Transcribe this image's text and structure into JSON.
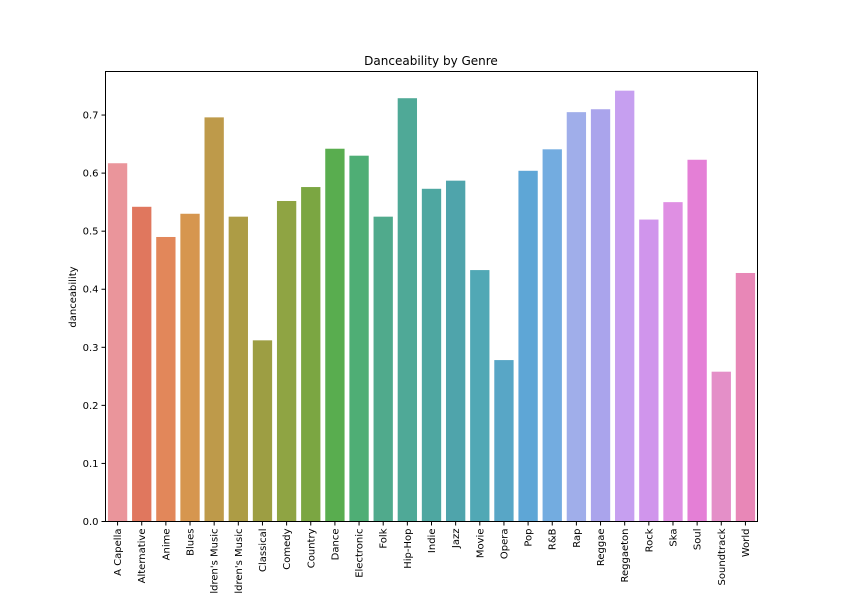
{
  "chart_data": {
    "type": "bar",
    "title": "Danceability by Genre",
    "xlabel": "",
    "ylabel": "danceability",
    "ylim": [
      0,
      0.775
    ],
    "yticks": [
      0.0,
      0.1,
      0.2,
      0.3,
      0.4,
      0.5,
      0.6,
      0.7
    ],
    "ytick_labels": [
      "0.0",
      "0.1",
      "0.2",
      "0.3",
      "0.4",
      "0.5",
      "0.6",
      "0.7"
    ],
    "grid": false,
    "categories": [
      "A Capella",
      "Alternative",
      "Anime",
      "Blues",
      "ldren's Music",
      "ldren's Music",
      "Classical",
      "Comedy",
      "Country",
      "Dance",
      "Electronic",
      "Folk",
      "Hip-Hop",
      "Indie",
      "Jazz",
      "Movie",
      "Opera",
      "Pop",
      "R&B",
      "Rap",
      "Reggae",
      "Reggaeton",
      "Rock",
      "Ska",
      "Soul",
      "Soundtrack",
      "World"
    ],
    "values": [
      0.617,
      0.542,
      0.49,
      0.53,
      0.696,
      0.525,
      0.312,
      0.552,
      0.576,
      0.642,
      0.63,
      0.525,
      0.729,
      0.573,
      0.587,
      0.433,
      0.278,
      0.604,
      0.641,
      0.705,
      0.71,
      0.742,
      0.52,
      0.55,
      0.623,
      0.258,
      0.428
    ],
    "colors": [
      "#ea959b",
      "#e0775e",
      "#e2875a",
      "#d6964f",
      "#be9a4a",
      "#ad9c45",
      "#9d9e43",
      "#8fa443",
      "#7ba642",
      "#59ad4f",
      "#4fae75",
      "#50aa8c",
      "#4fa997",
      "#4ea7a1",
      "#4fa4ab",
      "#51a8b5",
      "#58a6c6",
      "#5ea6d6",
      "#73ace0",
      "#a0aeea",
      "#aaa4ec",
      "#c69ff0",
      "#d095ec",
      "#df8fe3",
      "#e47fd6",
      "#e48fc8",
      "#e887b7"
    ]
  }
}
